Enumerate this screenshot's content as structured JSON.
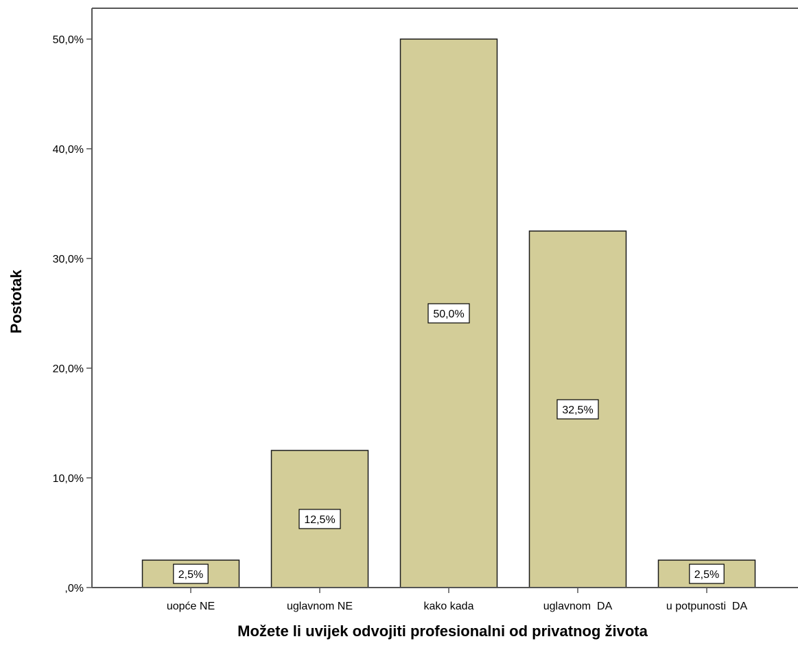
{
  "chart_data": {
    "type": "bar",
    "categories": [
      "uopće NE",
      "uglavnom NE",
      "kako kada",
      "uglavnom  DA",
      "u potpunosti  DA"
    ],
    "values": [
      2.5,
      12.5,
      50.0,
      32.5,
      2.5
    ],
    "data_labels": [
      "2,5%",
      "12,5%",
      "50,0%",
      "32,5%",
      "2,5%"
    ],
    "title": "",
    "xlabel": "Možete li uvijek odvojiti profesionalni od  privatnog života",
    "ylabel": "Postotak",
    "ylim": [
      0,
      55
    ],
    "yticks": [
      0,
      10,
      20,
      30,
      40,
      50
    ],
    "ytick_labels": [
      ",0%",
      "10,0%",
      "20,0%",
      "30,0%",
      "40,0%",
      "50,0%"
    ],
    "grid": false,
    "legend": "none",
    "colors": {
      "bar_fill": "#d3cd98",
      "bar_stroke": "#1a1a1a",
      "axis": "#555555",
      "label_box": "#ffffff"
    }
  }
}
